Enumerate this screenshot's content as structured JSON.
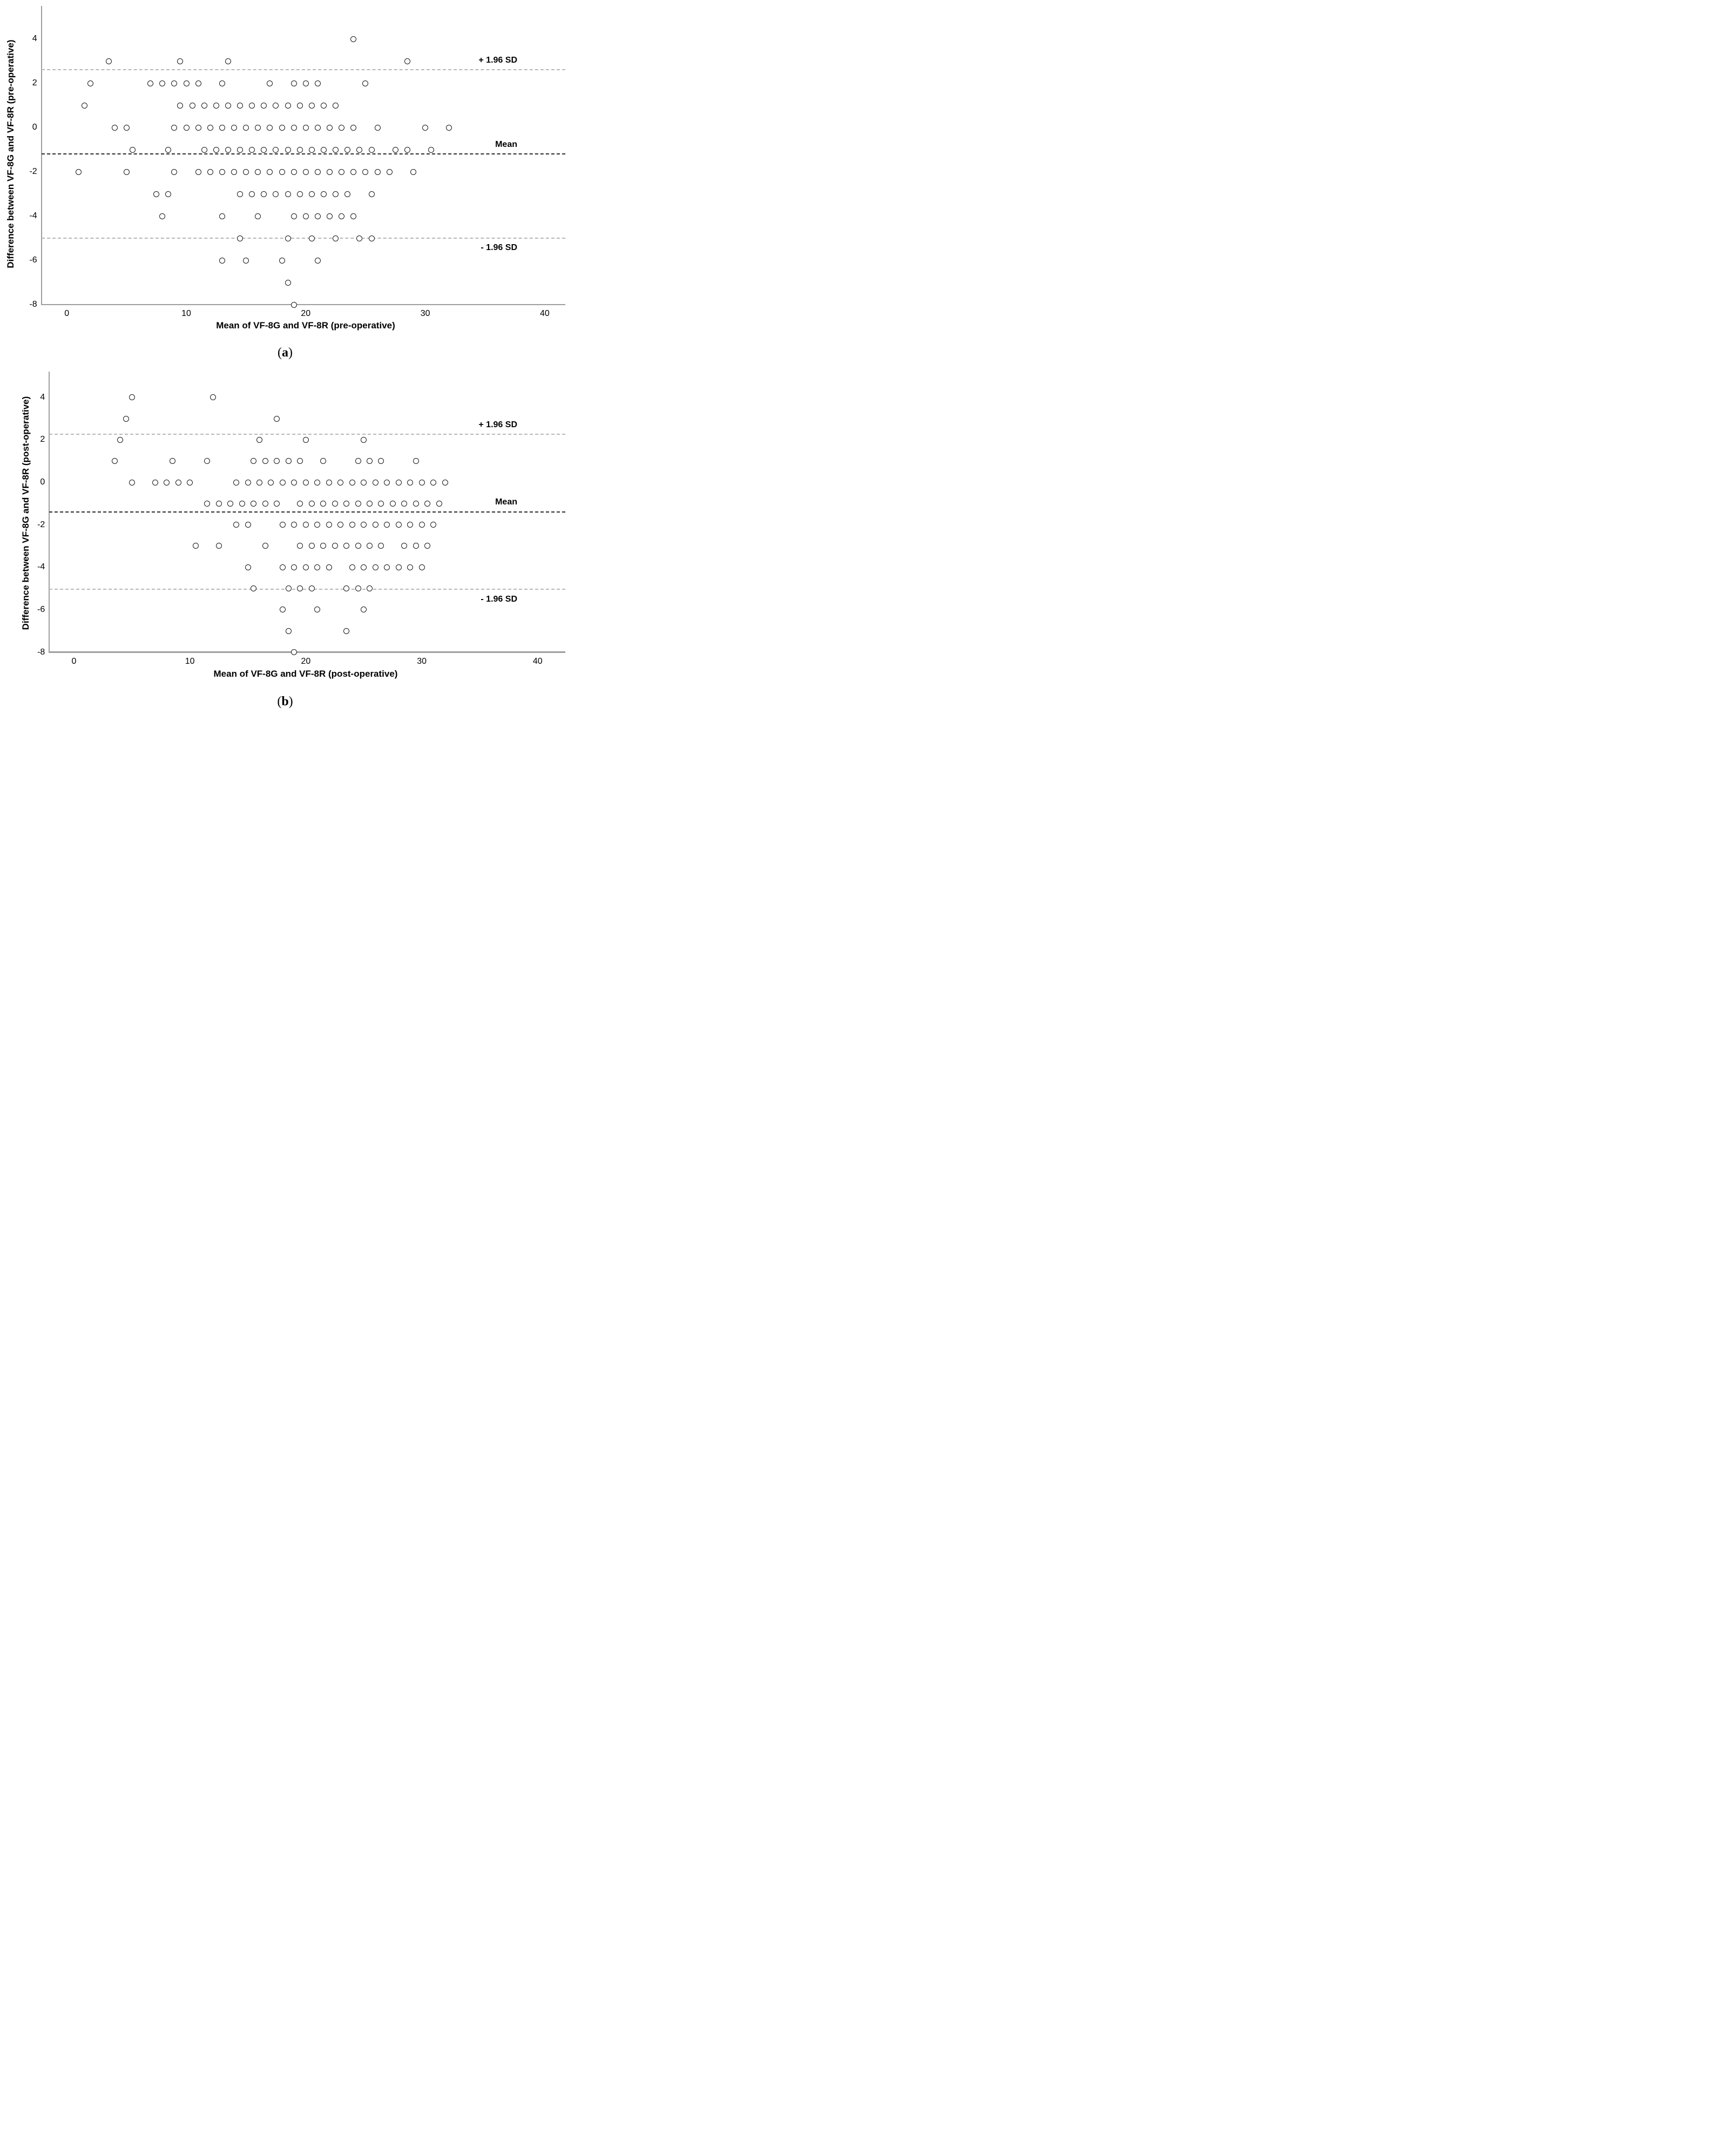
{
  "chart_data": [
    {
      "id": "a",
      "type": "scatter",
      "title": "",
      "xlabel": "Mean of VF-8G and VF-8R (pre-operative)",
      "ylabel": "Difference between VF-8G and VF-8R (pre-operative)",
      "caption": {
        "open": "(",
        "letter": "a",
        "close": ")"
      },
      "xlim": [
        -2.1,
        41.8
      ],
      "ylim": [
        -8,
        5.5
      ],
      "x_ticks": [
        0,
        10,
        20,
        30,
        40
      ],
      "y_ticks": [
        4,
        2,
        0,
        -2,
        -4,
        -6,
        -8
      ],
      "grid": false,
      "legend": "none",
      "marker": "open-circle",
      "reference_lines": [
        {
          "name": "upper-loa",
          "label": "+ 1.96 SD",
          "value": 2.6,
          "style": "light",
          "label_position": "above"
        },
        {
          "name": "mean",
          "label": "Mean",
          "value": -1.2,
          "style": "dark",
          "label_position": "above"
        },
        {
          "name": "lower-loa",
          "label": "- 1.96 SD",
          "value": -5.0,
          "style": "light",
          "label_position": "below"
        }
      ],
      "points": [
        [
          24,
          4
        ],
        [
          3.5,
          3
        ],
        [
          9.5,
          3
        ],
        [
          13.5,
          3
        ],
        [
          28.5,
          3
        ],
        [
          2,
          2
        ],
        [
          7,
          2
        ],
        [
          8,
          2
        ],
        [
          9,
          2
        ],
        [
          10,
          2
        ],
        [
          11,
          2
        ],
        [
          13,
          2
        ],
        [
          17,
          2
        ],
        [
          19,
          2
        ],
        [
          20,
          2
        ],
        [
          21,
          2
        ],
        [
          25,
          2
        ],
        [
          1.5,
          1
        ],
        [
          9.5,
          1
        ],
        [
          10.5,
          1
        ],
        [
          11.5,
          1
        ],
        [
          12.5,
          1
        ],
        [
          13.5,
          1
        ],
        [
          14.5,
          1
        ],
        [
          15.5,
          1
        ],
        [
          16.5,
          1
        ],
        [
          17.5,
          1
        ],
        [
          18.5,
          1
        ],
        [
          19.5,
          1
        ],
        [
          20.5,
          1
        ],
        [
          21.5,
          1
        ],
        [
          22.5,
          1
        ],
        [
          4,
          0
        ],
        [
          5,
          0
        ],
        [
          9,
          0
        ],
        [
          10,
          0
        ],
        [
          11,
          0
        ],
        [
          12,
          0
        ],
        [
          13,
          0
        ],
        [
          14,
          0
        ],
        [
          15,
          0
        ],
        [
          16,
          0
        ],
        [
          17,
          0
        ],
        [
          18,
          0
        ],
        [
          19,
          0
        ],
        [
          20,
          0
        ],
        [
          21,
          0
        ],
        [
          22,
          0
        ],
        [
          23,
          0
        ],
        [
          24,
          0
        ],
        [
          26,
          0
        ],
        [
          30,
          0
        ],
        [
          32,
          0
        ],
        [
          5.5,
          -1
        ],
        [
          8.5,
          -1
        ],
        [
          11.5,
          -1
        ],
        [
          12.5,
          -1
        ],
        [
          13.5,
          -1
        ],
        [
          14.5,
          -1
        ],
        [
          15.5,
          -1
        ],
        [
          16.5,
          -1
        ],
        [
          17.5,
          -1
        ],
        [
          18.5,
          -1
        ],
        [
          19.5,
          -1
        ],
        [
          20.5,
          -1
        ],
        [
          21.5,
          -1
        ],
        [
          22.5,
          -1
        ],
        [
          23.5,
          -1
        ],
        [
          24.5,
          -1
        ],
        [
          25.5,
          -1
        ],
        [
          27.5,
          -1
        ],
        [
          28.5,
          -1
        ],
        [
          30.5,
          -1
        ],
        [
          1,
          -2
        ],
        [
          5,
          -2
        ],
        [
          9,
          -2
        ],
        [
          11,
          -2
        ],
        [
          12,
          -2
        ],
        [
          13,
          -2
        ],
        [
          14,
          -2
        ],
        [
          15,
          -2
        ],
        [
          16,
          -2
        ],
        [
          17,
          -2
        ],
        [
          18,
          -2
        ],
        [
          19,
          -2
        ],
        [
          20,
          -2
        ],
        [
          21,
          -2
        ],
        [
          22,
          -2
        ],
        [
          23,
          -2
        ],
        [
          24,
          -2
        ],
        [
          25,
          -2
        ],
        [
          26,
          -2
        ],
        [
          27,
          -2
        ],
        [
          29,
          -2
        ],
        [
          7.5,
          -3
        ],
        [
          8.5,
          -3
        ],
        [
          14.5,
          -3
        ],
        [
          15.5,
          -3
        ],
        [
          16.5,
          -3
        ],
        [
          17.5,
          -3
        ],
        [
          18.5,
          -3
        ],
        [
          19.5,
          -3
        ],
        [
          20.5,
          -3
        ],
        [
          21.5,
          -3
        ],
        [
          22.5,
          -3
        ],
        [
          23.5,
          -3
        ],
        [
          25.5,
          -3
        ],
        [
          8,
          -4
        ],
        [
          13,
          -4
        ],
        [
          16,
          -4
        ],
        [
          19,
          -4
        ],
        [
          20,
          -4
        ],
        [
          21,
          -4
        ],
        [
          22,
          -4
        ],
        [
          23,
          -4
        ],
        [
          24,
          -4
        ],
        [
          14.5,
          -5
        ],
        [
          18.5,
          -5
        ],
        [
          20.5,
          -5
        ],
        [
          22.5,
          -5
        ],
        [
          24.5,
          -5
        ],
        [
          25.5,
          -5
        ],
        [
          13,
          -6
        ],
        [
          15,
          -6
        ],
        [
          18,
          -6
        ],
        [
          21,
          -6
        ],
        [
          18.5,
          -7
        ],
        [
          19,
          -8
        ]
      ]
    },
    {
      "id": "b",
      "type": "scatter",
      "title": "",
      "xlabel": "Mean of VF-8G and VF-8R (post-operative)",
      "ylabel": "Difference between VF-8G and VF-8R (post-operative)",
      "caption": {
        "open": "(",
        "letter": "b",
        "close": ")"
      },
      "xlim": [
        -2.1,
        42.4
      ],
      "ylim": [
        -8,
        5.2
      ],
      "x_ticks": [
        0,
        10,
        20,
        30,
        40
      ],
      "y_ticks": [
        4,
        2,
        0,
        -2,
        -4,
        -6,
        -8
      ],
      "grid": false,
      "legend": "none",
      "marker": "open-circle",
      "reference_lines": [
        {
          "name": "upper-loa",
          "label": "+ 1.96 SD",
          "value": 2.25,
          "style": "light",
          "label_position": "above"
        },
        {
          "name": "mean",
          "label": "Mean",
          "value": -1.4,
          "style": "dark",
          "label_position": "above"
        },
        {
          "name": "lower-loa",
          "label": "- 1.96 SD",
          "value": -5.05,
          "style": "light",
          "label_position": "below"
        }
      ],
      "points": [
        [
          5,
          4
        ],
        [
          12,
          4
        ],
        [
          4.5,
          3
        ],
        [
          17.5,
          3
        ],
        [
          4,
          2
        ],
        [
          16,
          2
        ],
        [
          20,
          2
        ],
        [
          25,
          2
        ],
        [
          3.5,
          1
        ],
        [
          8.5,
          1
        ],
        [
          11.5,
          1
        ],
        [
          15.5,
          1
        ],
        [
          16.5,
          1
        ],
        [
          17.5,
          1
        ],
        [
          18.5,
          1
        ],
        [
          19.5,
          1
        ],
        [
          21.5,
          1
        ],
        [
          24.5,
          1
        ],
        [
          25.5,
          1
        ],
        [
          26.5,
          1
        ],
        [
          29.5,
          1
        ],
        [
          5,
          0
        ],
        [
          7,
          0
        ],
        [
          8,
          0
        ],
        [
          9,
          0
        ],
        [
          10,
          0
        ],
        [
          14,
          0
        ],
        [
          15,
          0
        ],
        [
          16,
          0
        ],
        [
          17,
          0
        ],
        [
          18,
          0
        ],
        [
          19,
          0
        ],
        [
          20,
          0
        ],
        [
          21,
          0
        ],
        [
          22,
          0
        ],
        [
          23,
          0
        ],
        [
          24,
          0
        ],
        [
          25,
          0
        ],
        [
          26,
          0
        ],
        [
          27,
          0
        ],
        [
          28,
          0
        ],
        [
          29,
          0
        ],
        [
          30,
          0
        ],
        [
          31,
          0
        ],
        [
          32,
          0
        ],
        [
          11.5,
          -1
        ],
        [
          12.5,
          -1
        ],
        [
          13.5,
          -1
        ],
        [
          14.5,
          -1
        ],
        [
          15.5,
          -1
        ],
        [
          16.5,
          -1
        ],
        [
          17.5,
          -1
        ],
        [
          19.5,
          -1
        ],
        [
          20.5,
          -1
        ],
        [
          21.5,
          -1
        ],
        [
          22.5,
          -1
        ],
        [
          23.5,
          -1
        ],
        [
          24.5,
          -1
        ],
        [
          25.5,
          -1
        ],
        [
          26.5,
          -1
        ],
        [
          27.5,
          -1
        ],
        [
          28.5,
          -1
        ],
        [
          29.5,
          -1
        ],
        [
          30.5,
          -1
        ],
        [
          31.5,
          -1
        ],
        [
          14,
          -2
        ],
        [
          15,
          -2
        ],
        [
          18,
          -2
        ],
        [
          19,
          -2
        ],
        [
          20,
          -2
        ],
        [
          21,
          -2
        ],
        [
          22,
          -2
        ],
        [
          23,
          -2
        ],
        [
          24,
          -2
        ],
        [
          25,
          -2
        ],
        [
          26,
          -2
        ],
        [
          27,
          -2
        ],
        [
          28,
          -2
        ],
        [
          29,
          -2
        ],
        [
          30,
          -2
        ],
        [
          31,
          -2
        ],
        [
          10.5,
          -3
        ],
        [
          12.5,
          -3
        ],
        [
          16.5,
          -3
        ],
        [
          19.5,
          -3
        ],
        [
          20.5,
          -3
        ],
        [
          21.5,
          -3
        ],
        [
          22.5,
          -3
        ],
        [
          23.5,
          -3
        ],
        [
          24.5,
          -3
        ],
        [
          25.5,
          -3
        ],
        [
          26.5,
          -3
        ],
        [
          28.5,
          -3
        ],
        [
          29.5,
          -3
        ],
        [
          30.5,
          -3
        ],
        [
          15,
          -4
        ],
        [
          18,
          -4
        ],
        [
          19,
          -4
        ],
        [
          20,
          -4
        ],
        [
          21,
          -4
        ],
        [
          22,
          -4
        ],
        [
          24,
          -4
        ],
        [
          25,
          -4
        ],
        [
          26,
          -4
        ],
        [
          27,
          -4
        ],
        [
          28,
          -4
        ],
        [
          29,
          -4
        ],
        [
          30,
          -4
        ],
        [
          15.5,
          -5
        ],
        [
          18.5,
          -5
        ],
        [
          19.5,
          -5
        ],
        [
          20.5,
          -5
        ],
        [
          23.5,
          -5
        ],
        [
          24.5,
          -5
        ],
        [
          25.5,
          -5
        ],
        [
          18,
          -6
        ],
        [
          21,
          -6
        ],
        [
          25,
          -6
        ],
        [
          18.5,
          -7
        ],
        [
          23.5,
          -7
        ],
        [
          19,
          -8
        ]
      ]
    }
  ]
}
